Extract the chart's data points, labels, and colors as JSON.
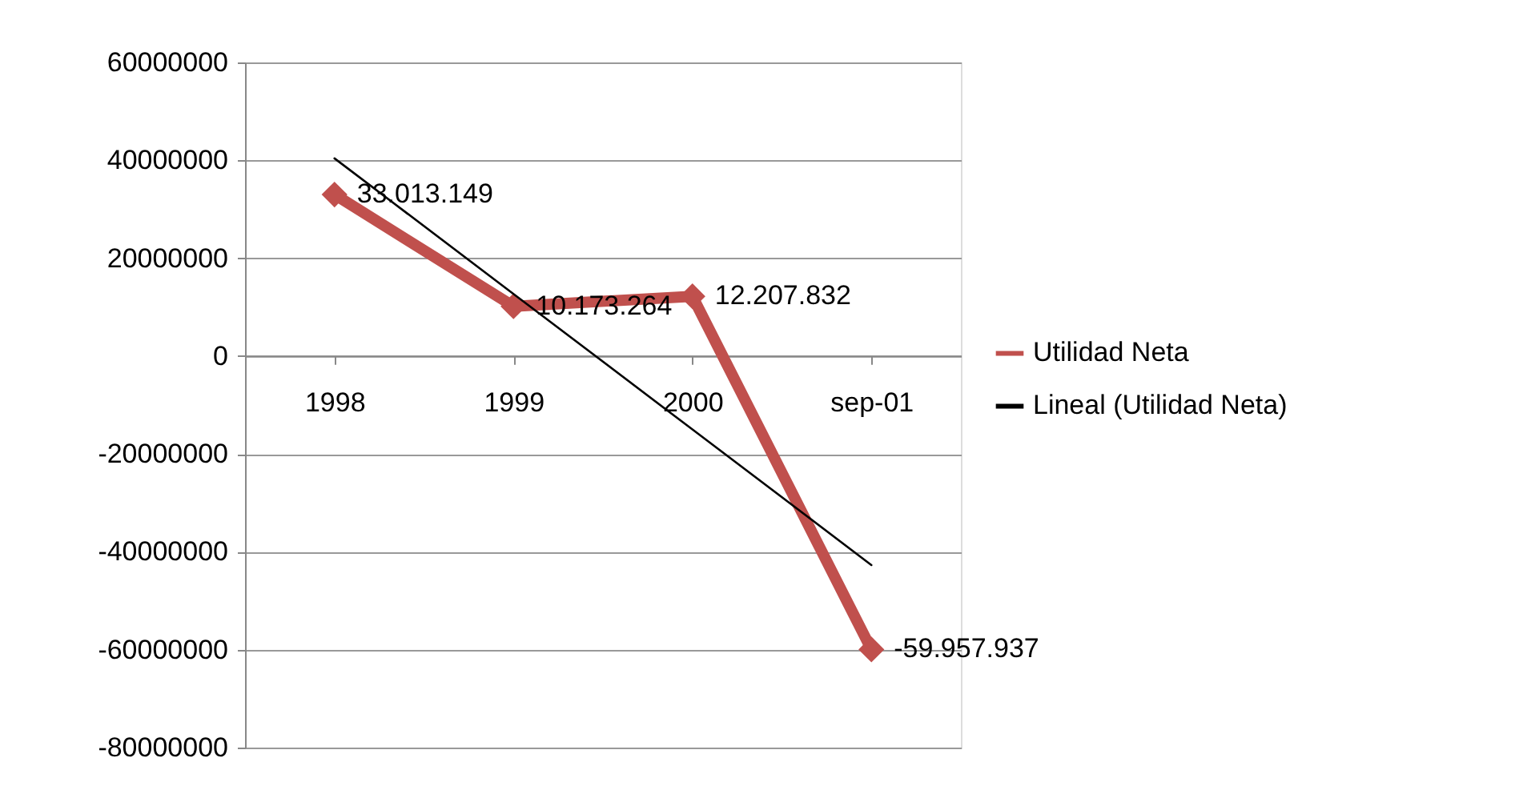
{
  "chart_data": {
    "type": "line",
    "categories": [
      "1998",
      "1999",
      "2000",
      "sep-01"
    ],
    "series": [
      {
        "name": "Utilidad Neta",
        "color": "#c0504d",
        "marker": "diamond",
        "values": [
          33013149,
          10173264,
          12207832,
          -59957937
        ],
        "value_labels": [
          "33.013.149",
          "10.173.264",
          "12.207.832",
          "-59.957.937"
        ]
      },
      {
        "name": "Lineal (Utilidad Neta)",
        "color": "#000000",
        "type": "line",
        "marker": "none",
        "values": [
          40400000,
          12700000,
          -15000000,
          -42700000
        ]
      }
    ],
    "ylim": [
      -80000000,
      60000000
    ],
    "yticks": [
      -80000000,
      -60000000,
      -40000000,
      -20000000,
      0,
      20000000,
      40000000,
      60000000
    ],
    "grid": "y",
    "legend": "right"
  }
}
